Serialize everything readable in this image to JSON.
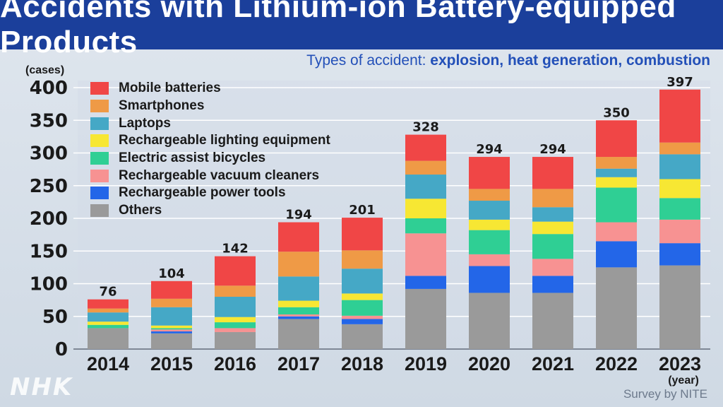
{
  "header": {
    "title": "Accidents with Lithium-ion Battery-equipped Products",
    "subtitle_prefix": "Types of accident: ",
    "subtitle_types": "explosion, heat generation, combustion"
  },
  "footer": {
    "source": "Survey by NITE",
    "logo": "NHK"
  },
  "colors": {
    "Mobile batteries": "#f04646",
    "Smartphones": "#ef9a46",
    "Laptops": "#45a8c6",
    "Rechargeable lighting equipment": "#f7e733",
    "Electric assist bicycles": "#2fcf94",
    "Rechargeable vacuum cleaners": "#f79292",
    "Rechargeable power tools": "#2366e8",
    "Others": "#9a9a9a"
  },
  "chart_data": {
    "type": "bar",
    "stacked": true,
    "title": "Accidents with Lithium-ion Battery-equipped Products",
    "ylabel": "(cases)",
    "xlabel": "(year)",
    "ylim": [
      0,
      400
    ],
    "yticks": [
      0,
      50,
      100,
      150,
      200,
      250,
      300,
      350,
      400
    ],
    "categories": [
      "2014",
      "2015",
      "2016",
      "2017",
      "2018",
      "2019",
      "2020",
      "2021",
      "2022",
      "2023"
    ],
    "totals": [
      76,
      104,
      142,
      194,
      201,
      328,
      294,
      294,
      350,
      397
    ],
    "series": [
      {
        "name": "Others",
        "values": [
          32,
          24,
          26,
          46,
          38,
          92,
          86,
          86,
          125,
          128
        ]
      },
      {
        "name": "Rechargeable power tools",
        "values": [
          0,
          3,
          0,
          4,
          8,
          20,
          41,
          26,
          40,
          34
        ]
      },
      {
        "name": "Rechargeable vacuum cleaners",
        "values": [
          0,
          3,
          6,
          3,
          5,
          65,
          18,
          26,
          29,
          36
        ]
      },
      {
        "name": "Electric assist bicycles",
        "values": [
          5,
          2,
          9,
          11,
          24,
          23,
          37,
          38,
          53,
          33
        ]
      },
      {
        "name": "Rechargeable lighting equipment",
        "values": [
          5,
          4,
          8,
          10,
          10,
          30,
          16,
          19,
          16,
          29
        ]
      },
      {
        "name": "Laptops",
        "values": [
          14,
          28,
          31,
          37,
          38,
          37,
          29,
          22,
          13,
          38
        ]
      },
      {
        "name": "Smartphones",
        "values": [
          6,
          13,
          17,
          38,
          28,
          21,
          18,
          28,
          18,
          18
        ]
      },
      {
        "name": "Mobile batteries",
        "values": [
          14,
          27,
          45,
          45,
          50,
          40,
          49,
          49,
          56,
          81
        ]
      }
    ],
    "legend": [
      "Mobile batteries",
      "Smartphones",
      "Laptops",
      "Rechargeable lighting equipment",
      "Electric assist bicycles",
      "Rechargeable vacuum cleaners",
      "Rechargeable power tools",
      "Others"
    ]
  }
}
